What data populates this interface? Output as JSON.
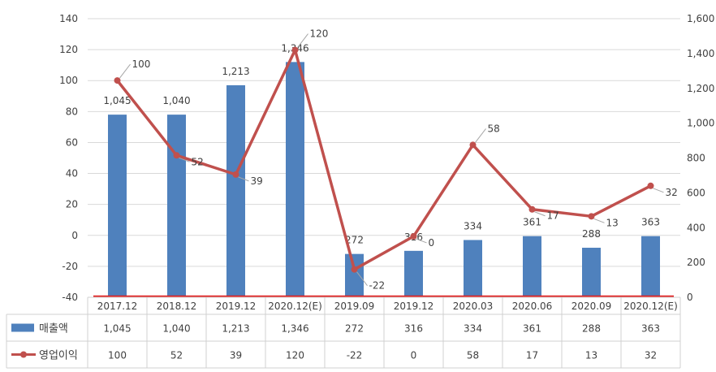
{
  "chart_data": {
    "type": "bar",
    "categories": [
      "2017.12",
      "2018.12",
      "2019.12",
      "2020.12(E)",
      "2019.09",
      "2019.12",
      "2020.03",
      "2020.06",
      "2020.09",
      "2020.12(E)"
    ],
    "series": [
      {
        "name": "매출액",
        "type": "bar",
        "axis": "left",
        "color": "#4F81BD",
        "values": [
          1045,
          1040,
          1213,
          1346,
          272,
          316,
          334,
          361,
          288,
          363
        ],
        "plotted_values": [
          78,
          78,
          97,
          112,
          -12,
          -10,
          -3,
          -0.5,
          -8,
          -0.5
        ],
        "labels": [
          "1,045",
          "1,040",
          "1,213",
          "1,346",
          "272",
          "316",
          "334",
          "361",
          "288",
          "363"
        ]
      },
      {
        "name": "영업이익",
        "type": "line",
        "axis": "right",
        "color": "#C0504D",
        "values": [
          100,
          52,
          39,
          120,
          -22,
          0,
          58,
          17,
          13,
          32
        ],
        "plotted_values": [
          1245,
          815,
          705,
          1420,
          160,
          350,
          875,
          505,
          465,
          640
        ],
        "labels": [
          "100",
          "52",
          "39",
          "120",
          "-22",
          "0",
          "58",
          "17",
          "13",
          "32"
        ]
      }
    ],
    "left_axis": {
      "min": -40,
      "max": 140,
      "ticks": [
        "-40",
        "-20",
        "0",
        "20",
        "40",
        "60",
        "80",
        "100",
        "120",
        "140"
      ]
    },
    "right_axis": {
      "min": 0,
      "max": 1600,
      "ticks": [
        "0",
        "200",
        "400",
        "600",
        "800",
        "1,000",
        "1,200",
        "1,400",
        "1,600"
      ]
    },
    "grid": "horizontal",
    "legend": "data-table",
    "table": {
      "rows": [
        {
          "name": "매출액",
          "values": [
            "1,045",
            "1,040",
            "1,213",
            "1,346",
            "272",
            "316",
            "334",
            "361",
            "288",
            "363"
          ]
        },
        {
          "name": "영업이익",
          "values": [
            "100",
            "52",
            "39",
            "120",
            "-22",
            "0",
            "58",
            "17",
            "13",
            "32"
          ]
        }
      ]
    }
  }
}
